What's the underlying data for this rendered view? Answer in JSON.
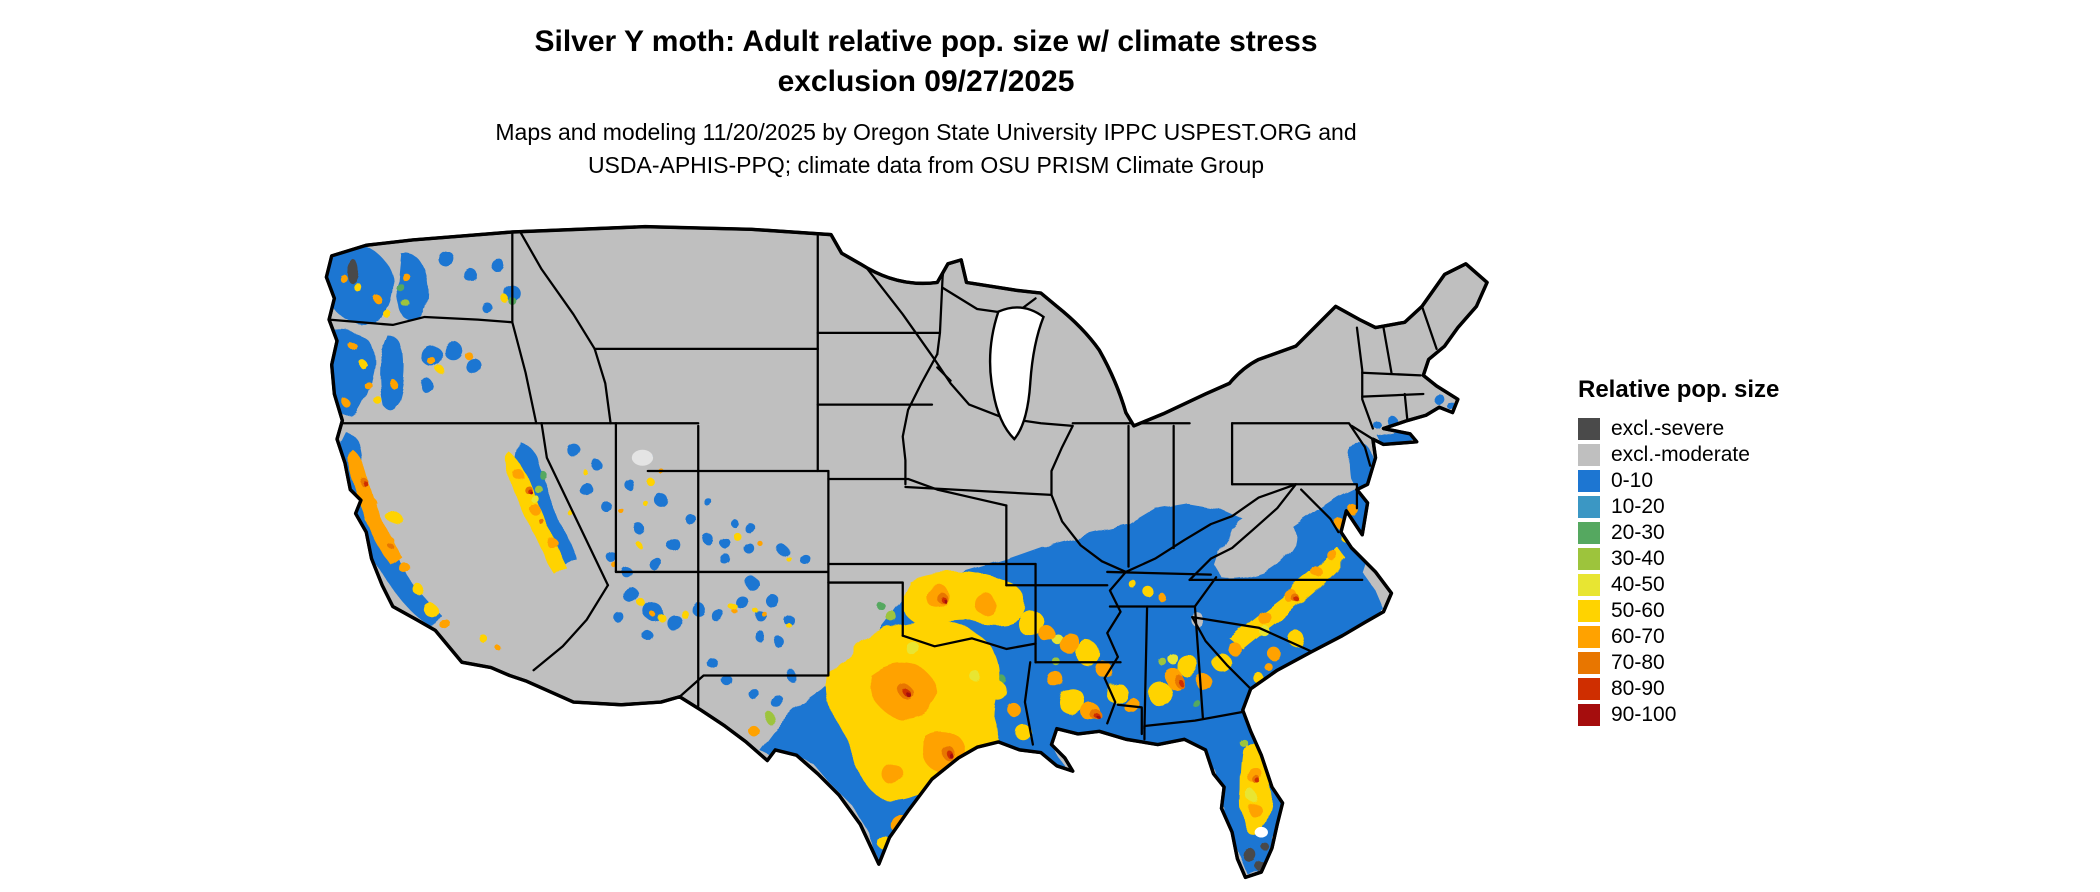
{
  "title": {
    "line1": "Silver Y moth: Adult relative pop. size w/ climate stress",
    "line2": "exclusion 09/27/2025"
  },
  "subtitle": {
    "line1": "Maps and modeling 11/20/2025 by Oregon State University IPPC USPEST.ORG and",
    "line2": "USDA-APHIS-PPQ; climate data from OSU PRISM Climate Group"
  },
  "legend": {
    "title": "Relative pop. size",
    "entries": [
      {
        "label": "excl.-severe",
        "color": "#4a4a4a"
      },
      {
        "label": "excl.-moderate",
        "color": "#bfbfbf"
      },
      {
        "label": "0-10",
        "color": "#1d76d2"
      },
      {
        "label": "10-20",
        "color": "#3b97c4"
      },
      {
        "label": "20-30",
        "color": "#55a860"
      },
      {
        "label": "30-40",
        "color": "#9dc43c"
      },
      {
        "label": "40-50",
        "color": "#e8e532"
      },
      {
        "label": "50-60",
        "color": "#ffd300"
      },
      {
        "label": "60-70",
        "color": "#ffa200"
      },
      {
        "label": "70-80",
        "color": "#e87600"
      },
      {
        "label": "80-90",
        "color": "#cf2e00"
      },
      {
        "label": "90-100",
        "color": "#a50d0d"
      }
    ]
  },
  "palette": {
    "severe": "#4a4a4a",
    "moderate": "#bfbfbf",
    "b0": "#1d76d2",
    "b10": "#3b97c4",
    "g20": "#55a860",
    "g30": "#9dc43c",
    "y40": "#e8e532",
    "y50": "#ffd300",
    "o60": "#ffa200",
    "o70": "#e87600",
    "r80": "#cf2e00",
    "r90": "#a50d0d",
    "ink": "#000000",
    "water": "#ffffff",
    "lake_fill": "#e4e4e4"
  },
  "map_meta": {
    "region": "Continental United States",
    "kind": "raster population-index map"
  }
}
